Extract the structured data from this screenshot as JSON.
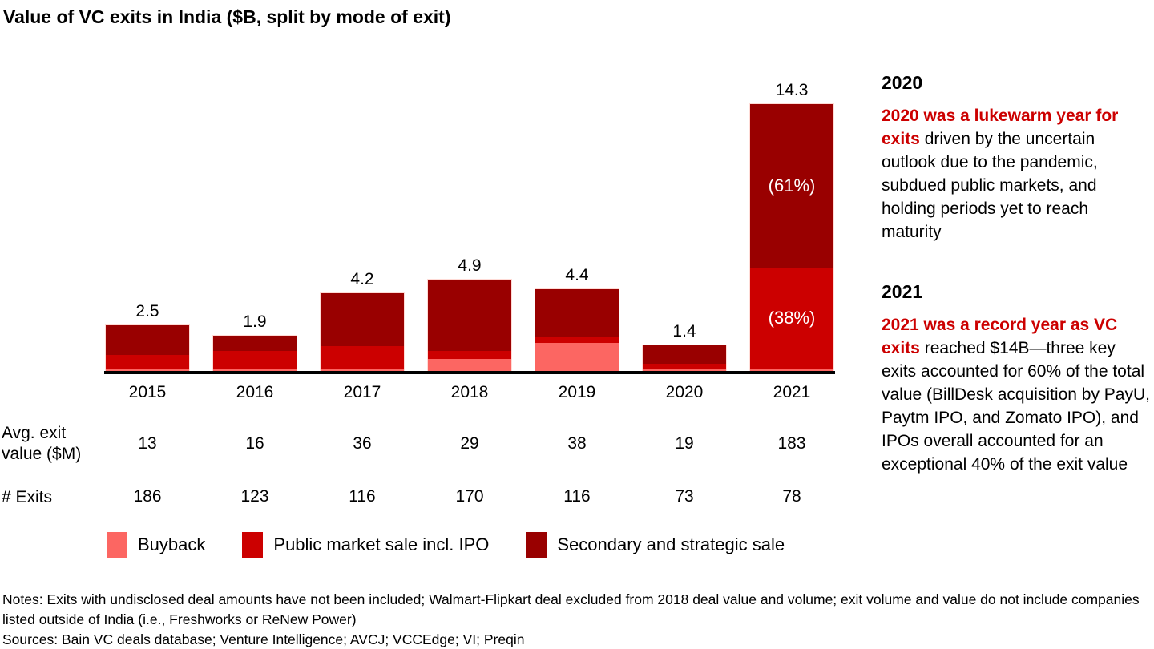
{
  "title": "Value of VC exits in India ($B, split by mode of exit)",
  "chart_data": {
    "type": "bar",
    "stacked": true,
    "unit": "$B",
    "title": "Value of VC exits in India ($B, split by mode of exit)",
    "categories": [
      "2015",
      "2016",
      "2017",
      "2018",
      "2019",
      "2020",
      "2021"
    ],
    "series": [
      {
        "name": "Buyback",
        "color": "#FC6662",
        "values": [
          0.15,
          0.1,
          0.1,
          0.65,
          1.5,
          0.1,
          0.15
        ]
      },
      {
        "name": "Public market sale incl. IPO",
        "color": "#CC0000",
        "values": [
          0.75,
          1.0,
          1.25,
          0.45,
          0.35,
          0.3,
          5.4
        ]
      },
      {
        "name": "Secondary and strategic sale",
        "color": "#990000",
        "values": [
          1.6,
          0.8,
          2.85,
          3.8,
          2.55,
          1.0,
          8.75
        ]
      }
    ],
    "totals": [
      "2.5",
      "1.9",
      "4.2",
      "4.9",
      "4.4",
      "1.4",
      "14.3"
    ],
    "segment_labels": [
      {
        "category": "2021",
        "series": "Secondary and strategic sale",
        "label": "(61%)"
      },
      {
        "category": "2021",
        "series": "Public market sale incl. IPO",
        "label": "(38%)"
      }
    ],
    "legend_position": "bottom",
    "grid": false,
    "ylim": [
      0,
      15
    ]
  },
  "table": {
    "rows": [
      {
        "label": "Avg. exit value ($M)",
        "values": [
          "13",
          "16",
          "36",
          "29",
          "38",
          "19",
          "183"
        ]
      },
      {
        "label": "# Exits",
        "values": [
          "186",
          "123",
          "116",
          "170",
          "116",
          "73",
          "78"
        ]
      }
    ]
  },
  "legend": {
    "items": [
      {
        "label": "Buyback",
        "color": "#FC6662"
      },
      {
        "label": "Public market sale incl. IPO",
        "color": "#CC0000"
      },
      {
        "label": "Secondary and strategic sale",
        "color": "#990000"
      }
    ]
  },
  "commentary": [
    {
      "heading": "2020",
      "highlight": "2020 was a lukewarm year for exits",
      "body": " driven by the uncertain outlook due to the pandemic, subdued public markets, and holding periods yet to reach maturity"
    },
    {
      "heading": "2021",
      "highlight": "2021 was a record year as VC exits",
      "body": " reached $14B—three key exits accounted for 60% of the total value (BillDesk acquisition by PayU, Paytm IPO, and Zomato IPO), and IPOs overall accounted for an exceptional 40% of the exit value"
    }
  ],
  "footnotes": {
    "notes": "Notes: Exits with undisclosed deal amounts have not been included; Walmart-Flipkart deal excluded from 2018 deal value and volume; exit volume and value do not include companies listed outside of India (i.e., Freshworks or ReNew Power)",
    "sources": "Sources: Bain VC deals database; Venture Intelligence; AVCJ; VCCEdge; VI; Preqin"
  },
  "colors": {
    "highlight_text": "#CC0000",
    "axis": "#000000"
  }
}
